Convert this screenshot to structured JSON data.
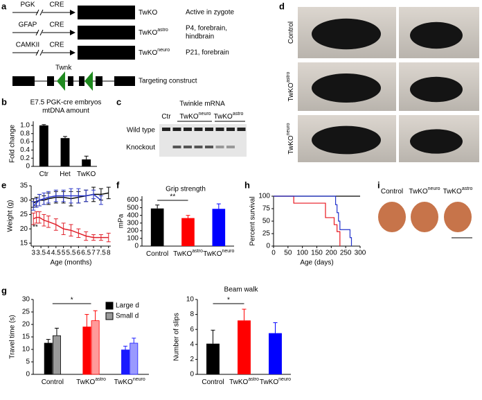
{
  "panel_labels": [
    "a",
    "b",
    "c",
    "d",
    "e",
    "f",
    "g",
    "h",
    "i"
  ],
  "diagram": {
    "rows": [
      {
        "promoter": "PGK",
        "gene": "CRE",
        "label": [
          "TwKO"
        ],
        "note": [
          "Active in zygote"
        ],
        "color": "#000000"
      },
      {
        "promoter": "GFAP",
        "gene": "CRE",
        "label": [
          "TwKO",
          "astro"
        ],
        "note": [
          "P4, forebrain,",
          "hindbrain"
        ],
        "color": "#e8141c"
      },
      {
        "promoter": "CAMKII",
        "gene": "CRE",
        "label": [
          "TwKO",
          "neuro"
        ],
        "note": [
          "P21, forebrain"
        ],
        "color": "#2233cc"
      }
    ],
    "construct_gene": "Twnk",
    "construct_label": "Targeting construct"
  },
  "gel": {
    "title": "Twinkle mRNA",
    "lanes": [
      [
        "Ctr"
      ],
      [
        "TwKO",
        "neuro"
      ],
      [
        "TwKO",
        "astro"
      ]
    ],
    "bands": [
      "Wild type",
      "Knockout"
    ]
  },
  "photos": {
    "rows": [
      [
        "Control"
      ],
      [
        "TwKO",
        "astro"
      ],
      [
        "TwKO",
        "neuro"
      ]
    ]
  },
  "brains": {
    "labels": [
      [
        "Control"
      ],
      [
        "TwKO",
        "neuro"
      ],
      [
        "TwKO",
        "astro"
      ]
    ]
  },
  "chart_data": [
    {
      "type": "bar",
      "title": "E7.5 PGK-cre embryos",
      "subtitle": "mtDNA amount",
      "ylabel": "Fold change",
      "categories": [
        [
          "Ctr"
        ],
        [
          "Het"
        ],
        [
          "TwKO"
        ]
      ],
      "values": [
        1,
        0.69,
        0.17
      ],
      "errors": [
        0.02,
        0.04,
        0.08
      ],
      "color": "#000000",
      "ylim": [
        0,
        1.1
      ],
      "yticks": [
        0,
        0.2,
        0.4,
        0.6,
        0.8,
        {
          "value": 1,
          "label": "1.0"
        }
      ]
    },
    {
      "type": "line",
      "xlabel": "Age (months)",
      "ylabel": "Weight (g)",
      "annotation": "**",
      "x": [
        3,
        3.2,
        3.4,
        3.7,
        4,
        4.5,
        5,
        5.5,
        6,
        6.5,
        7,
        7.5,
        8
      ],
      "series": [
        {
          "color": "#000000",
          "values": [
            29,
            29.5,
            30,
            30,
            30.5,
            31,
            31,
            30.5,
            31,
            31.5,
            32,
            32,
            32.5
          ],
          "errors": [
            1.5,
            1.5,
            2,
            1.5,
            2,
            2,
            2,
            2.5,
            2,
            2,
            2.5,
            2,
            2
          ]
        },
        {
          "color": "#2a36c8",
          "values": [
            28,
            29,
            30,
            30.5,
            31,
            31.5,
            31.5,
            31.5,
            31.5,
            31.5,
            32,
            30,
            null
          ],
          "errors": [
            1.5,
            1.5,
            2,
            2,
            2,
            2,
            2,
            2.5,
            2.5,
            2,
            1.5,
            1.5,
            null
          ]
        },
        {
          "color": "#e0202a",
          "values": [
            23.5,
            24,
            24,
            23,
            22.5,
            21.5,
            20,
            19.5,
            18.5,
            17.5,
            17,
            17,
            17
          ],
          "errors": [
            2,
            2,
            2,
            2,
            2,
            2,
            2,
            2,
            1.5,
            1.5,
            1,
            1,
            1.5
          ]
        }
      ],
      "xlim": [
        2.85,
        8.15
      ],
      "xticks": [
        3,
        3.5,
        4,
        4.5,
        5,
        5.5,
        6,
        6.5,
        7,
        7.5,
        8
      ],
      "ylim": [
        14,
        35
      ],
      "yticks": [
        15,
        20,
        25,
        30,
        35
      ]
    },
    {
      "type": "bar",
      "title": "Grip strength",
      "ylabel": "mPa",
      "annotation": "**",
      "categories": [
        [
          "Control"
        ],
        [
          "TwKO",
          "astro"
        ],
        [
          "TwKO",
          "neuro"
        ]
      ],
      "values": [
        490,
        365,
        485
      ],
      "errors": [
        45,
        35,
        65
      ],
      "colors": [
        "#000000",
        "#ff0000",
        "#0000ff"
      ],
      "ylim": [
        0,
        650
      ],
      "yticks": [
        0,
        100,
        200,
        300,
        400,
        500,
        600
      ]
    },
    {
      "type": "grouped_bar",
      "title": "Beam walk",
      "ylabel": "Travel time (s)",
      "annotation": "*",
      "categories": [
        [
          "Control"
        ],
        [
          "TwKO",
          "astro"
        ],
        [
          "TwKO",
          "neuro"
        ]
      ],
      "series": [
        {
          "name": "Large d",
          "colors": [
            "#000000",
            "#ff0000",
            "#1a1aff"
          ],
          "values": [
            12.5,
            19,
            9.8
          ],
          "errors": [
            1.5,
            5,
            1.5
          ]
        },
        {
          "name": "Small d",
          "colors": [
            "#9a9a9a",
            "#ff9a9a",
            "#9a9aff"
          ],
          "values": [
            15.5,
            21.5,
            12.5
          ],
          "errors": [
            3,
            4,
            2
          ]
        }
      ],
      "ylim": [
        0,
        30
      ],
      "yticks": [
        0,
        5,
        10,
        15,
        20,
        25,
        30
      ]
    },
    {
      "type": "bar",
      "ylabel": "Number of slips",
      "annotation": "*",
      "categories": [
        [
          "Control"
        ],
        [
          "TwKO",
          "astro"
        ],
        [
          "TwKO",
          "neuro"
        ]
      ],
      "values": [
        4.1,
        7.2,
        5.5
      ],
      "errors": [
        1.8,
        1.5,
        1.4
      ],
      "colors": [
        "#000000",
        "#ff0000",
        "#0000ff"
      ],
      "ylim": [
        0,
        10
      ],
      "yticks": [
        0,
        2,
        4,
        6,
        8,
        10
      ]
    },
    {
      "type": "step",
      "xlabel": "Age (days)",
      "ylabel": "Percent survival",
      "series": [
        {
          "color": "#000000",
          "x": [
            0,
            300
          ],
          "values": [
            100,
            100
          ]
        },
        {
          "color": "#e8141c",
          "x": [
            0,
            70,
            180,
            210,
            220,
            230
          ],
          "values": [
            100,
            86,
            57,
            43,
            29,
            0
          ]
        },
        {
          "color": "#2233cc",
          "x": [
            0,
            215,
            220,
            225,
            230,
            265,
            270
          ],
          "values": [
            100,
            83,
            67,
            50,
            33,
            17,
            0
          ]
        }
      ],
      "xlim": [
        0,
        300
      ],
      "xticks": [
        0,
        50,
        100,
        150,
        200,
        250,
        300
      ],
      "ylim": [
        0,
        100
      ],
      "yticks": [
        0,
        25,
        50,
        75,
        100
      ]
    }
  ]
}
